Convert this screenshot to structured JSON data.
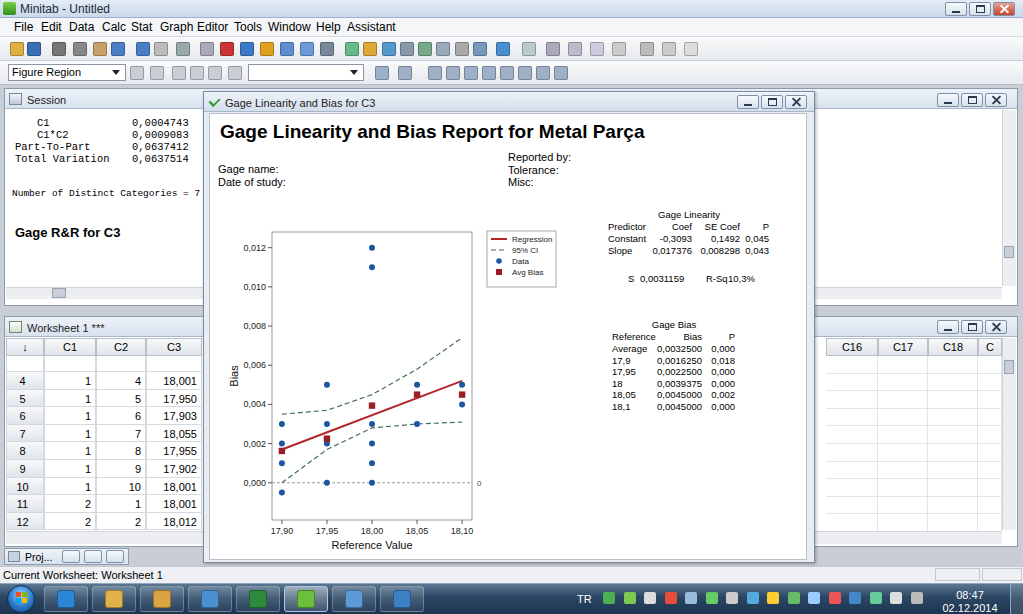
{
  "app": {
    "title": "Minitab - Untitled",
    "menu": [
      "File",
      "Edit",
      "Data",
      "Calc",
      "Stat",
      "Graph",
      "Editor",
      "Tools",
      "Window",
      "Help",
      "Assistant"
    ],
    "toolbar_dropdown": "Figure Region",
    "status": "Current Worksheet: Worksheet 1"
  },
  "session": {
    "title": "Session",
    "rows": [
      [
        "C1",
        "0,0004743"
      ],
      [
        "C1*C2",
        "0,0009083"
      ],
      [
        "Part-To-Part",
        "0,0637412"
      ],
      [
        "Total Variation",
        "0,0637514"
      ]
    ],
    "categories_line": "Number of Distinct Categories = 7",
    "heading": "Gage R&R for C3"
  },
  "worksheet": {
    "title": "Worksheet 1 ***",
    "columns": [
      "↓",
      "C1",
      "C2",
      "C3"
    ],
    "right_columns": [
      "C16",
      "C17",
      "C18",
      "C"
    ],
    "rows": [
      [
        "4",
        "1",
        "4",
        "18,001"
      ],
      [
        "5",
        "1",
        "5",
        "17,950"
      ],
      [
        "6",
        "1",
        "6",
        "17,903"
      ],
      [
        "7",
        "1",
        "7",
        "18,055"
      ],
      [
        "8",
        "1",
        "8",
        "17,955"
      ],
      [
        "9",
        "1",
        "9",
        "17,902"
      ],
      [
        "10",
        "1",
        "10",
        "18,001"
      ],
      [
        "11",
        "2",
        "1",
        "18,001"
      ],
      [
        "12",
        "2",
        "2",
        "18,012"
      ]
    ]
  },
  "project": {
    "title": "Proj..."
  },
  "report": {
    "window_title": "Gage Linearity and Bias for C3",
    "title": "Gage Linearity and Bias Report for Metal Parça",
    "fields_left": [
      "Gage name:",
      "Date of study:"
    ],
    "fields_right": [
      "Reported by:",
      "Tolerance:",
      "Misc:"
    ],
    "linearity": {
      "title": "Gage Linearity",
      "header": [
        "Predictor",
        "Coef",
        "SE Coef",
        "P"
      ],
      "rows": [
        [
          "Constant",
          "-0,3093",
          "0,1492",
          "0,045"
        ],
        [
          "Slope",
          "0,017376",
          "0,008298",
          "0,043"
        ]
      ],
      "fit": [
        "S",
        "0,0031159",
        "R-Sq",
        "10,3%"
      ]
    },
    "bias": {
      "title": "Gage Bias",
      "header": [
        "Reference",
        "Bias",
        "P"
      ],
      "rows": [
        [
          "Average",
          "0,0032500",
          "0,000"
        ],
        [
          "17,9",
          "0,0016250",
          "0,018"
        ],
        [
          "17,95",
          "0,0022500",
          "0,000"
        ],
        [
          "18",
          "0,0039375",
          "0,000"
        ],
        [
          "18,05",
          "0,0045000",
          "0,002"
        ],
        [
          "18,1",
          "0,0045000",
          "0,000"
        ]
      ]
    }
  },
  "chart_data": {
    "type": "scatter",
    "x_label": "Reference Value",
    "y_label": "Bias",
    "xlim": [
      17.889,
      18.111
    ],
    "ylim": [
      -0.0019,
      0.0128
    ],
    "xticks": [
      {
        "value": 17.9,
        "label": "17,90"
      },
      {
        "value": 17.95,
        "label": "17,95"
      },
      {
        "value": 18.0,
        "label": "18,00"
      },
      {
        "value": 18.05,
        "label": "18,05"
      },
      {
        "value": 18.1,
        "label": "18,10"
      }
    ],
    "yticks": [
      {
        "value": 0,
        "label": "0,000"
      },
      {
        "value": 0.002,
        "label": "0,002"
      },
      {
        "value": 0.004,
        "label": "0,004"
      },
      {
        "value": 0.006,
        "label": "0,006"
      },
      {
        "value": 0.008,
        "label": "0,008"
      },
      {
        "value": 0.01,
        "label": "0,010"
      },
      {
        "value": 0.012,
        "label": "0,012"
      }
    ],
    "reference_line": {
      "value": 0,
      "label": "0"
    },
    "grid": false,
    "legend": "right",
    "series": [
      {
        "name": "Regression",
        "type": "line",
        "color": "#b3262a",
        "line_style": "solid",
        "x": [
          17.9,
          18.1
        ],
        "values": [
          0.0017,
          0.0052
        ]
      },
      {
        "name": "95% CI",
        "type": "band",
        "color": "#3f6f60",
        "line_style": "dashed",
        "x": [
          17.9,
          17.95,
          18.0,
          18.05,
          18.1
        ],
        "upper": [
          0.0035,
          0.0037,
          0.0045,
          0.0058,
          0.0074
        ],
        "lower": [
          0.0,
          0.0017,
          0.0028,
          0.003,
          0.0031
        ]
      },
      {
        "name": "Data",
        "type": "scatter",
        "color": "#1d56a0",
        "marker": "circle",
        "x": [
          17.9,
          17.9,
          17.9,
          17.9,
          17.95,
          17.95,
          17.95,
          17.95,
          18.0,
          18.0,
          18.0,
          18.0,
          18.0,
          18.0,
          18.05,
          18.05,
          18.1,
          18.1
        ],
        "values": [
          0.003,
          0.002,
          0.001,
          -0.0005,
          0.005,
          0.003,
          0.002,
          0.0,
          0.012,
          0.011,
          0.003,
          0.002,
          0.001,
          0.0,
          0.005,
          0.003,
          0.005,
          0.004
        ]
      },
      {
        "name": "Avg Bias",
        "type": "scatter",
        "color": "#9a1f24",
        "marker": "square",
        "x": [
          17.9,
          17.95,
          18.0,
          18.05,
          18.1
        ],
        "values": [
          0.001625,
          0.00225,
          0.0039375,
          0.0045,
          0.0045
        ]
      }
    ]
  },
  "taskbar": {
    "language": "TR",
    "time": "08:47",
    "date": "02.12.2014"
  }
}
